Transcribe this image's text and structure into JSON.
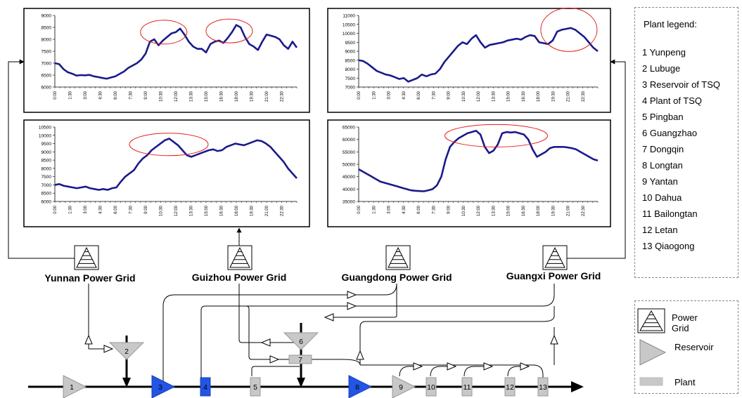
{
  "colors": {
    "series": "#1a1a8c",
    "highlight": "#e02020",
    "plant_fill": "#c8c8c8",
    "reservoir_fill": "#c8c8c8",
    "key_node_fill": "#2255e6",
    "river": "#000000"
  },
  "grids": [
    {
      "id": "yunnan",
      "label": "Yunnan Power Grid"
    },
    {
      "id": "guizhou",
      "label": "Guizhou Power Grid"
    },
    {
      "id": "guangdong",
      "label": "Guangdong Power Grid"
    },
    {
      "id": "guangxi",
      "label": "Guangxi Power Grid"
    }
  ],
  "nodes": [
    {
      "num": "1",
      "kind": "reservoir",
      "color": "gray"
    },
    {
      "num": "2",
      "kind": "reservoir",
      "color": "gray"
    },
    {
      "num": "3",
      "kind": "reservoir",
      "color": "blue"
    },
    {
      "num": "4",
      "kind": "plant",
      "color": "blue"
    },
    {
      "num": "5",
      "kind": "plant",
      "color": "gray"
    },
    {
      "num": "6",
      "kind": "reservoir",
      "color": "gray"
    },
    {
      "num": "7",
      "kind": "plant",
      "color": "gray"
    },
    {
      "num": "8",
      "kind": "reservoir",
      "color": "blue"
    },
    {
      "num": "9",
      "kind": "reservoir",
      "color": "gray"
    },
    {
      "num": "10",
      "kind": "plant",
      "color": "gray"
    },
    {
      "num": "11",
      "kind": "plant",
      "color": "gray"
    },
    {
      "num": "12",
      "kind": "plant",
      "color": "gray"
    },
    {
      "num": "13",
      "kind": "plant",
      "color": "gray"
    }
  ],
  "legend": {
    "title": "Plant legend:",
    "items": [
      "1 Yunpeng",
      "2 Lubuge",
      "3 Reservoir of TSQ",
      "4 Plant of TSQ",
      "5 Pingban",
      "6 Guangzhao",
      "7 Dongqin",
      "8 Longtan",
      "9 Yantan",
      "10 Dahua",
      "11 Bailongtan",
      "12 Letan",
      "13 Qiaogong"
    ]
  },
  "symbols": {
    "power_grid": "Power Grid",
    "reservoir": "Reservoir",
    "plant": "Plant"
  },
  "chart_data": [
    {
      "type": "line",
      "grid": "Yunnan Power Grid",
      "ylim": [
        6000,
        9000
      ],
      "yticks": [
        "6000",
        "6500",
        "7000",
        "7500",
        "8000",
        "8500",
        "9000"
      ],
      "xticks": [
        "0:00",
        "1:30",
        "3:00",
        "4:30",
        "6:00",
        "7:30",
        "9:00",
        "10:30",
        "12:00",
        "13:30",
        "15:00",
        "16:30",
        "18:00",
        "19:30",
        "21:00",
        "22:30"
      ],
      "values": [
        7000,
        6960,
        6750,
        6620,
        6560,
        6480,
        6500,
        6490,
        6510,
        6450,
        6420,
        6380,
        6350,
        6400,
        6450,
        6550,
        6650,
        6800,
        6900,
        7000,
        7150,
        7400,
        7900,
        8000,
        7750,
        7950,
        8100,
        8250,
        8300,
        8450,
        8200,
        7900,
        7700,
        7600,
        7600,
        7450,
        7800,
        7900,
        7950,
        7850,
        8050,
        8300,
        8600,
        8500,
        8100,
        7800,
        7700,
        7550,
        7900,
        8200,
        8150,
        8100,
        8000,
        7750,
        7600,
        7900,
        7650
      ],
      "ellipses": [
        [
          10.8,
          8300
        ],
        [
          17.3,
          8350
        ]
      ]
    },
    {
      "type": "line",
      "grid": "Guangdong Power Grid",
      "ylim": [
        7000,
        11000
      ],
      "yticks": [
        "7000",
        "7500",
        "8000",
        "8500",
        "9000",
        "9500",
        "10000",
        "10500",
        "11000"
      ],
      "xticks": [
        "0:00",
        "1:30",
        "3:00",
        "4:30",
        "6:00",
        "7:30",
        "9:00",
        "10:30",
        "12:00",
        "13:30",
        "15:00",
        "16:30",
        "18:00",
        "19:30",
        "21:00",
        "22:30"
      ],
      "values": [
        8500,
        8450,
        8300,
        8100,
        7900,
        7800,
        7700,
        7650,
        7550,
        7450,
        7500,
        7300,
        7400,
        7500,
        7700,
        7600,
        7700,
        7750,
        8000,
        8400,
        8700,
        9000,
        9300,
        9500,
        9400,
        9700,
        9900,
        9500,
        9200,
        9350,
        9400,
        9450,
        9500,
        9600,
        9650,
        9700,
        9650,
        9800,
        9900,
        9850,
        9500,
        9450,
        9400,
        9600,
        10100,
        10200,
        10250,
        10300,
        10200,
        10000,
        9800,
        9500,
        9200,
        9000
      ],
      "ellipses": [
        [
          21.1,
          10200
        ]
      ]
    },
    {
      "type": "line",
      "grid": "Guizhou Power Grid",
      "ylim": [
        6000,
        10500
      ],
      "yticks": [
        "6000",
        "6500",
        "7000",
        "7500",
        "8000",
        "8500",
        "9000",
        "9500",
        "10000",
        "10500"
      ],
      "xticks": [
        "0:00",
        "1:30",
        "3:00",
        "4:30",
        "6:00",
        "7:30",
        "9:00",
        "10:30",
        "12:00",
        "13:30",
        "15:00",
        "16:30",
        "18:00",
        "19:30",
        "21:00",
        "22:30"
      ],
      "values": [
        7000,
        7050,
        6950,
        6900,
        6850,
        6800,
        6850,
        6900,
        6800,
        6750,
        6700,
        6750,
        6700,
        6800,
        6850,
        7200,
        7500,
        7700,
        7900,
        8300,
        8600,
        8800,
        9100,
        9300,
        9500,
        9700,
        9800,
        9600,
        9400,
        9100,
        8800,
        8700,
        8800,
        8900,
        9000,
        9100,
        9150,
        9050,
        9100,
        9300,
        9400,
        9500,
        9450,
        9400,
        9500,
        9600,
        9700,
        9650,
        9500,
        9300,
        9000,
        8700,
        8400,
        8000,
        7700,
        7400
      ],
      "ellipses": [
        [
          11.3,
          9450
        ]
      ]
    },
    {
      "type": "line",
      "grid": "Guangxi Power Grid",
      "ylim": [
        35000,
        65000
      ],
      "yticks": [
        "35000",
        "40000",
        "45000",
        "50000",
        "55000",
        "60000",
        "65000"
      ],
      "xticks": [
        "0:00",
        "1:30",
        "3:00",
        "4:30",
        "6:00",
        "7:30",
        "9:00",
        "10:30",
        "12:00",
        "13:30",
        "15:00",
        "16:30",
        "18:00",
        "19:30",
        "21:00",
        "22:30"
      ],
      "values": [
        48000,
        47000,
        46000,
        45000,
        44000,
        43000,
        42500,
        42000,
        41500,
        41000,
        40500,
        40000,
        39500,
        39300,
        39200,
        39100,
        39500,
        40000,
        41500,
        45000,
        52000,
        57000,
        59000,
        60500,
        61500,
        62500,
        63000,
        63500,
        62000,
        57000,
        54500,
        55500,
        58000,
        62500,
        63000,
        62800,
        63000,
        62500,
        62000,
        60000,
        56000,
        53000,
        54000,
        55000,
        56500,
        57000,
        57000,
        57000,
        56800,
        56500,
        56000,
        55000,
        54000,
        53000,
        52000,
        51500
      ],
      "ellipses": [
        [
          13.8,
          61500
        ]
      ]
    }
  ]
}
